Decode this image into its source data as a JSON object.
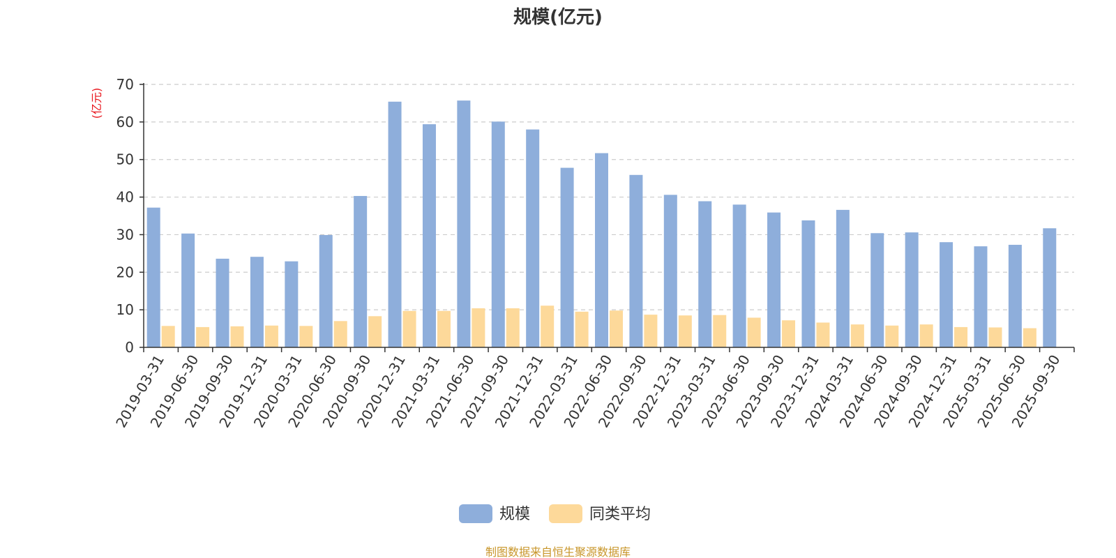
{
  "chart_data": {
    "type": "bar",
    "title": "规模(亿元)",
    "ylabel": "(亿元)",
    "ylim": [
      0,
      70
    ],
    "yticks": [
      0,
      10,
      20,
      30,
      40,
      50,
      60,
      70
    ],
    "grid": true,
    "legend_position": "bottom-center",
    "categories": [
      "2019-03-31",
      "2019-06-30",
      "2019-09-30",
      "2019-12-31",
      "2020-03-31",
      "2020-06-30",
      "2020-09-30",
      "2020-12-31",
      "2021-03-31",
      "2021-06-30",
      "2021-09-30",
      "2021-12-31",
      "2022-03-31",
      "2022-06-30",
      "2022-09-30",
      "2022-12-31",
      "2023-03-31",
      "2023-06-30",
      "2023-09-30",
      "2023-12-31",
      "2024-03-31",
      "2024-06-30",
      "2024-09-30",
      "2024-12-31",
      "2025-03-31",
      "2025-06-30",
      "2025-09-30"
    ],
    "series": [
      {
        "name": "规模",
        "color": "#8eaedb",
        "values": [
          37.2,
          30.3,
          23.6,
          24.1,
          22.9,
          29.9,
          40.3,
          65.4,
          59.4,
          65.7,
          60.1,
          58.0,
          47.8,
          51.7,
          45.9,
          40.6,
          38.9,
          38.0,
          35.9,
          33.8,
          36.6,
          30.4,
          30.6,
          28.0,
          26.9,
          27.3,
          31.7
        ]
      },
      {
        "name": "同类平均",
        "color": "#fdd99a",
        "values": [
          5.7,
          5.4,
          5.6,
          5.8,
          5.7,
          7.0,
          8.3,
          9.7,
          9.7,
          10.4,
          10.4,
          11.1,
          9.5,
          9.8,
          8.7,
          8.5,
          8.6,
          7.9,
          7.2,
          6.6,
          6.1,
          5.8,
          6.1,
          5.4,
          5.3,
          5.1,
          null
        ]
      }
    ]
  },
  "legend": {
    "items": [
      {
        "label": "规模",
        "color": "#8eaedb"
      },
      {
        "label": "同类平均",
        "color": "#fdd99a"
      }
    ]
  },
  "source_note": "制图数据来自恒生聚源数据库"
}
